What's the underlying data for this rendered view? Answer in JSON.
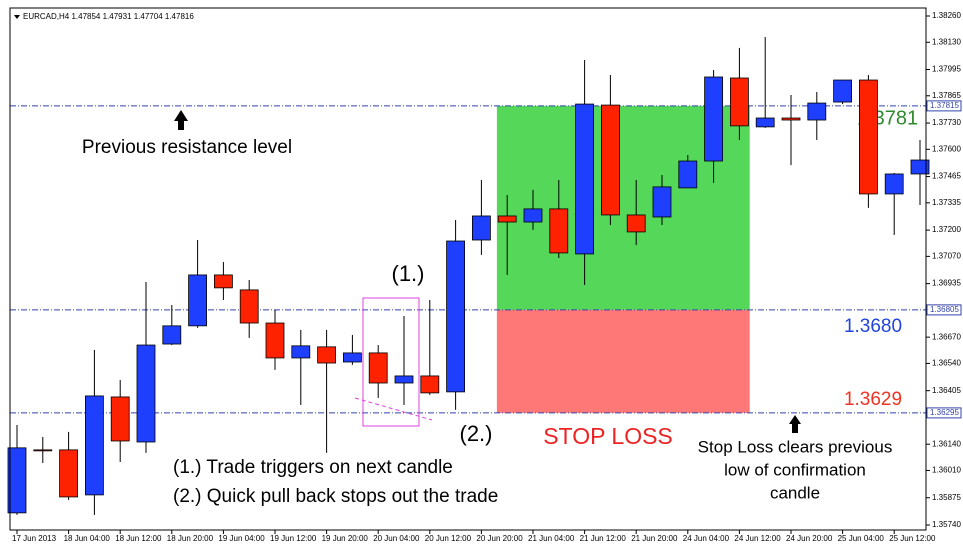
{
  "chart_data": {
    "type": "candlestick",
    "title": "EURCAD,H4 1.47854 1.47931 1.47704 1.47816",
    "categories": [
      "17 Jun 2013",
      null,
      "18 Jun 04:00",
      null,
      "18 Jun 12:00",
      null,
      "18 Jun 20:00",
      null,
      "19 Jun 04:00",
      null,
      "19 Jun 12:00",
      null,
      "19 Jun 20:00",
      null,
      "20 Jun 04:00",
      null,
      "20 Jun 12:00",
      null,
      "20 Jun 20:00",
      null,
      "21 Jun 04:00",
      null,
      "21 Jun 12:00",
      null,
      "21 Jun 20:00",
      null,
      "24 Jun 04:00",
      null,
      "24 Jun 12:00",
      null,
      "24 Jun 20:00",
      null,
      "25 Jun 04:00",
      null,
      "25 Jun 12:00",
      null
    ],
    "open": [
      1.358,
      1.36112,
      1.36112,
      1.35889,
      1.36374,
      1.36151,
      1.36636,
      1.36726,
      1.36978,
      1.36904,
      1.3674,
      1.36567,
      1.36622,
      1.36547,
      1.36592,
      1.36443,
      1.36478,
      1.36399,
      1.37151,
      1.3727,
      1.3724,
      1.37305,
      1.37082,
      1.37819,
      1.37275,
      1.37265,
      1.37409,
      1.37542,
      1.37953,
      1.37711,
      1.37755,
      1.37745,
      1.37834,
      1.37943,
      1.37379,
      1.37478
    ],
    "high": [
      1.36235,
      1.36176,
      1.36201,
      1.36607,
      1.36458,
      1.36943,
      1.36829,
      1.37151,
      1.37042,
      1.36953,
      1.36805,
      1.36706,
      1.36706,
      1.36681,
      1.36631,
      1.36775,
      1.36854,
      1.3725,
      1.37448,
      1.37374,
      1.37399,
      1.37448,
      1.38042,
      1.37968,
      1.37448,
      1.37473,
      1.37572,
      1.37993,
      1.38102,
      1.38156,
      1.37869,
      1.37884,
      1.37943,
      1.37968,
      1.37483,
      1.37646
    ],
    "low": [
      1.3579,
      1.36047,
      1.35864,
      1.3579,
      1.36052,
      1.36097,
      1.36631,
      1.36716,
      1.36854,
      1.36666,
      1.36508,
      1.36334,
      1.36097,
      1.36533,
      1.36369,
      1.36334,
      1.36384,
      1.3631,
      1.37077,
      1.36978,
      1.37201,
      1.37062,
      1.36928,
      1.37225,
      1.37126,
      1.37225,
      1.37433,
      1.37433,
      1.37646,
      1.37706,
      1.37522,
      1.37646,
      1.37824,
      1.3731,
      1.37176,
      1.37324
    ],
    "close": [
      1.36122,
      1.36107,
      1.35879,
      1.36379,
      1.36156,
      1.36631,
      1.36726,
      1.36978,
      1.36914,
      1.3674,
      1.36567,
      1.36627,
      1.36542,
      1.36592,
      1.36443,
      1.36478,
      1.36394,
      1.37146,
      1.3727,
      1.3724,
      1.37305,
      1.37087,
      1.37824,
      1.37275,
      1.37191,
      1.37414,
      1.37542,
      1.37958,
      1.37716,
      1.37755,
      1.37745,
      1.37829,
      1.37943,
      1.37379,
      1.37478,
      1.37547
    ],
    "up_color": "#1f3fff",
    "down_color": "#ff2200",
    "ylim": [
      1.3574,
      1.3826
    ],
    "yticks": [
      {
        "value": 1.3826,
        "label": "1.38260"
      },
      {
        "value": 1.3813,
        "label": "1.38130"
      },
      {
        "value": 1.37995,
        "label": "1.37995"
      },
      {
        "value": 1.37865,
        "label": "1.37865"
      },
      {
        "value": 1.3773,
        "label": "1.37730"
      },
      {
        "value": 1.376,
        "label": "1.37600"
      },
      {
        "value": 1.37465,
        "label": "1.37465"
      },
      {
        "value": 1.37335,
        "label": "1.37335"
      },
      {
        "value": 1.372,
        "label": "1.37200"
      },
      {
        "value": 1.3707,
        "label": "1.37070"
      },
      {
        "value": 1.36935,
        "label": "1.36935"
      },
      {
        "value": 1.3667,
        "label": "1.36670"
      },
      {
        "value": 1.3654,
        "label": "1.36540"
      },
      {
        "value": 1.36405,
        "label": "1.36405"
      },
      {
        "value": 1.3614,
        "label": "1.36140"
      },
      {
        "value": 1.3601,
        "label": "1.36010"
      },
      {
        "value": 1.35875,
        "label": "1.35875"
      },
      {
        "value": 1.3574,
        "label": "1.35740"
      }
    ],
    "levels": [
      {
        "value": 1.37815,
        "label": "1.37815"
      },
      {
        "value": 1.36805,
        "label": "1.36805"
      },
      {
        "value": 1.36295,
        "label": "1.36295"
      }
    ],
    "zones": [
      {
        "from": 1.36805,
        "to": 1.37815,
        "color": "#55d85a"
      },
      {
        "from": 1.36295,
        "to": 1.36805,
        "color": "#ff7878"
      }
    ],
    "annotations": {
      "resistance": "Previous resistance level",
      "mark1": "(1.)",
      "mark2": "(2.)",
      "note1": "(1.) Trade triggers on next candle",
      "note2": "(2.) Quick pull back stops out the trade",
      "stop_loss": "STOP LOSS",
      "target_label": "1.3781",
      "entry_label": "1.3680",
      "stop_label": "1.3629",
      "stop_note": [
        "Stop Loss clears previous",
        "low of confirmation",
        "candle"
      ]
    }
  }
}
